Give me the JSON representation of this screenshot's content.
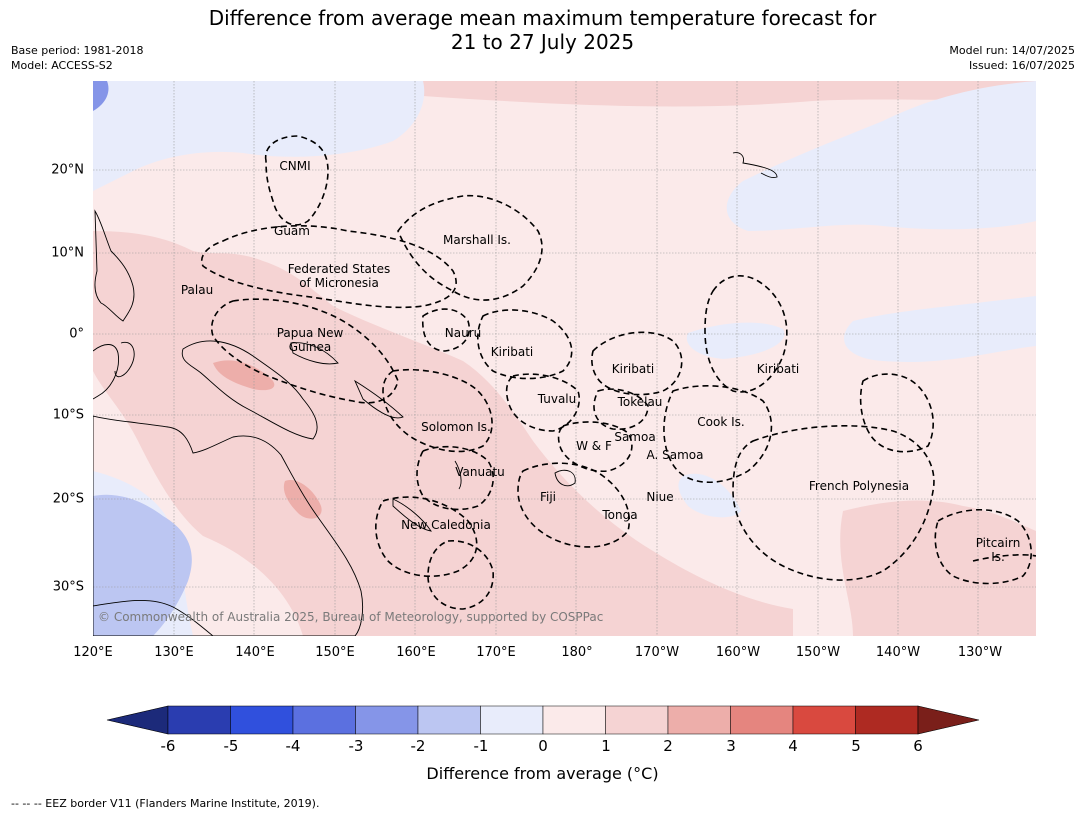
{
  "header": {
    "title_line1": "Difference from average mean maximum temperature forecast for",
    "title_line2": "21 to 27 July 2025",
    "base_period": "Base period: 1981-2018",
    "model": "Model: ACCESS-S2",
    "model_run": "Model run: 14/07/2025",
    "issued": "Issued: 16/07/2025"
  },
  "map": {
    "lon_labels": [
      "120°E",
      "130°E",
      "140°E",
      "150°E",
      "160°E",
      "170°E",
      "180°",
      "170°W",
      "160°W",
      "150°W",
      "140°W",
      "130°W"
    ],
    "lat_labels": [
      "20°N",
      "10°N",
      "0°",
      "10°S",
      "20°S",
      "30°S"
    ],
    "regions": {
      "cnmi": "CNMI",
      "guam": "Guam",
      "marshall": "Marshall Is.",
      "fsm1": "Federated States",
      "fsm2": "of Micronesia",
      "palau": "Palau",
      "png1": "Papua New",
      "png2": "Guinea",
      "nauru": "Nauru",
      "kiribati_w": "Kiribati",
      "kiribati_c": "Kiribati",
      "kiribati_e": "Kiribati",
      "tuvalu": "Tuvalu",
      "tokelau": "Tokelau",
      "cook": "Cook Is.",
      "solomon": "Solomon Is.",
      "samoa": "Samoa",
      "wf": "W & F",
      "asamoa": "A. Samoa",
      "vanuatu": "Vanuatu",
      "fiji": "Fiji",
      "niue": "Niue",
      "tonga": "Tonga",
      "newcal": "New Caledonia",
      "frpoly": "French Polynesia",
      "pitcairn1": "Pitcairn",
      "pitcairn2": "Is."
    },
    "copyright": "© Commonwealth of Australia 2025, Bureau of Meteorology, supported by COSPPac"
  },
  "colorbar": {
    "labels": [
      "-6",
      "-5",
      "-4",
      "-3",
      "-2",
      "-1",
      "0",
      "1",
      "2",
      "3",
      "4",
      "5",
      "6"
    ],
    "colors": [
      "#1c2a7a",
      "#2a3db0",
      "#3050dd",
      "#5b70e0",
      "#8595e8",
      "#bcc6f2",
      "#e8ecfb",
      "#fbeaea",
      "#f5d3d3",
      "#edaeaa",
      "#e5857f",
      "#d9493f",
      "#ae2a22",
      "#7a1f1a"
    ],
    "title": "Difference from average (°C)"
  },
  "footer": {
    "note": "-- -- -- EEZ border V11 (Flanders Marine Institute, 2019)."
  }
}
